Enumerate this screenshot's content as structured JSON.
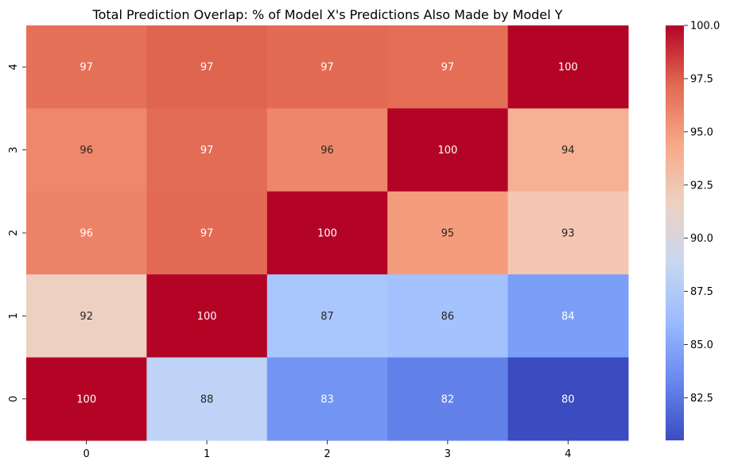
{
  "chart_data": {
    "type": "heatmap",
    "title": "Total Prediction Overlap: % of Model X's Predictions Also Made by Model Y",
    "xlabel": "",
    "ylabel": "",
    "x_categories": [
      "0",
      "1",
      "2",
      "3",
      "4"
    ],
    "y_categories_top_to_bottom": [
      "4",
      "3",
      "2",
      "1",
      "0"
    ],
    "values_top_to_bottom": [
      [
        97,
        97,
        97,
        97,
        100
      ],
      [
        96,
        97,
        96,
        100,
        94
      ],
      [
        96,
        97,
        100,
        95,
        93
      ],
      [
        92,
        100,
        87,
        86,
        84
      ],
      [
        100,
        88,
        83,
        82,
        80
      ]
    ],
    "cell_colors_top_to_bottom": [
      [
        "#e57158",
        "#e0654f",
        "#e36b54",
        "#e46e56",
        "#b40426"
      ],
      [
        "#ef886b",
        "#e36c55",
        "#ee8669",
        "#b40426",
        "#f6b194"
      ],
      [
        "#ed8366",
        "#e36b54",
        "#b40426",
        "#f59c7d",
        "#f3c7b1"
      ],
      [
        "#eed0c0",
        "#b40426",
        "#aac7fd",
        "#a3c2fe",
        "#7b9ff9"
      ],
      [
        "#b40426",
        "#bfd3f6",
        "#7295f4",
        "#6282ea",
        "#3b4cc0"
      ]
    ],
    "annotation_color_light": "#ffffff",
    "annotation_color_dark": "#262626",
    "colormap": "coolwarm",
    "colorbar": {
      "min": 80.5,
      "max": 100.0,
      "ticks": [
        "82.5",
        "85.0",
        "87.5",
        "90.0",
        "92.5",
        "95.0",
        "97.5",
        "100.0"
      ],
      "stops": [
        "#3b4cc0",
        "#6788ee",
        "#9abbff",
        "#c9d7f0",
        "#edd1c2",
        "#f7a889",
        "#e26952",
        "#b40426"
      ]
    },
    "grid": false,
    "legend": "colorbar-right"
  }
}
